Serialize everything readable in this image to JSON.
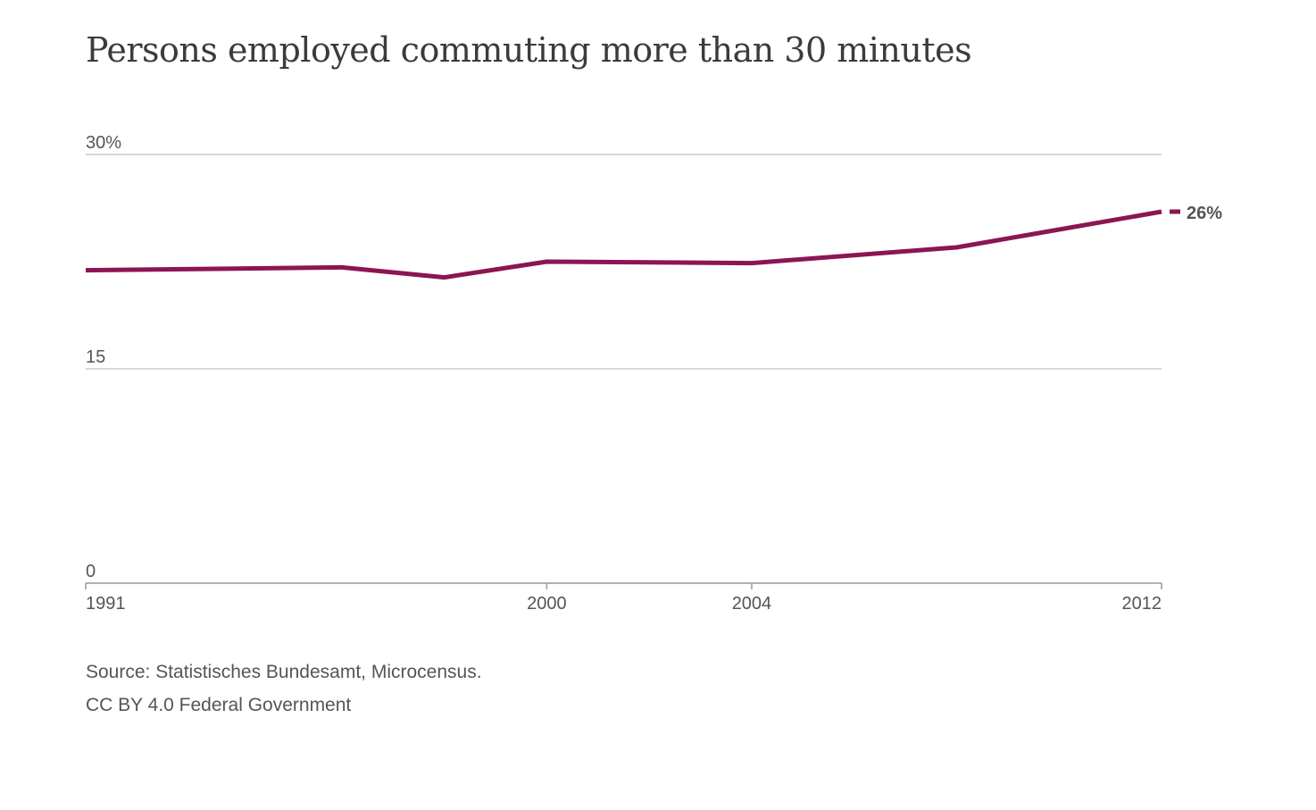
{
  "chart_data": {
    "type": "line",
    "title": "Persons employed commuting more than 30 minutes",
    "xlabel": "",
    "ylabel": "",
    "x": [
      1991,
      1996,
      1998,
      2000,
      2004,
      2008,
      2012
    ],
    "series": [
      {
        "values": [
          21.9,
          22.1,
          21.4,
          22.5,
          22.4,
          23.5,
          26.0
        ],
        "color": "#8c1552"
      }
    ],
    "xlim": [
      1991,
      2012
    ],
    "ylim": [
      0,
      30
    ],
    "x_ticks": [
      {
        "value": 1991,
        "label": "1991"
      },
      {
        "value": 2000,
        "label": "2000"
      },
      {
        "value": 2004,
        "label": "2004"
      },
      {
        "value": 2012,
        "label": "2012"
      }
    ],
    "y_ticks": [
      {
        "value": 30,
        "label": "30%"
      },
      {
        "value": 15,
        "label": "15"
      },
      {
        "value": 0,
        "label": "0"
      }
    ],
    "end_label": "26%",
    "grid": true
  },
  "footer": {
    "source": "Source: Statistisches Bundesamt, Microcensus.",
    "license": "CC BY 4.0 Federal Government"
  },
  "colors": {
    "line": "#8c1552",
    "grid": "#cccccc",
    "axis": "#999999",
    "text": "#555555",
    "title": "#3b3b3b"
  }
}
